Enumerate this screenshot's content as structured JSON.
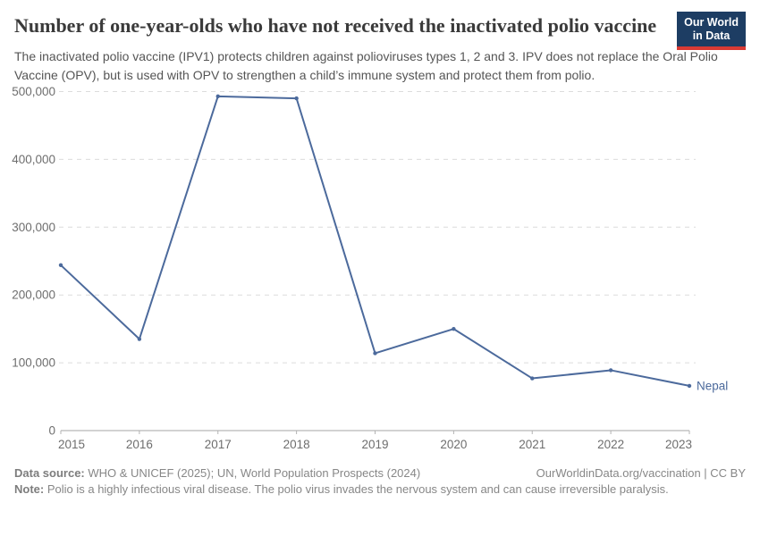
{
  "header": {
    "logo": {
      "line1": "Our World",
      "line2": "in Data",
      "bg_color": "#1d3d63",
      "accent_color": "#d93a34"
    }
  },
  "chart_data": {
    "type": "line",
    "title": "Number of one-year-olds who have not received the inactivated polio vaccine",
    "subtitle": "The inactivated polio vaccine (IPV1) protects children against polioviruses types 1, 2 and 3. IPV does not replace the Oral Polio Vaccine (OPV), but is used with OPV to strengthen a child’s immune system and protect them from polio.",
    "x": [
      2015,
      2016,
      2017,
      2018,
      2019,
      2020,
      2021,
      2022,
      2023
    ],
    "series": [
      {
        "name": "Nepal",
        "color": "#4c6a9c",
        "values": [
          244000,
          135000,
          493000,
          490000,
          114000,
          150000,
          77000,
          89000,
          66000
        ]
      }
    ],
    "ylim": [
      0,
      500000
    ],
    "yticks": [
      0,
      100000,
      200000,
      300000,
      400000,
      500000
    ],
    "ytick_labels": [
      "0",
      "100,000",
      "200,000",
      "300,000",
      "400,000",
      "500,000"
    ],
    "xtick_labels": [
      "2015",
      "2016",
      "2017",
      "2018",
      "2019",
      "2020",
      "2021",
      "2022",
      "2023"
    ],
    "grid": "horizontal-dashed",
    "grid_color": "#dcdcdc",
    "axis_color": "#a5a5a5",
    "tick_label_color": "#6e6e6e",
    "legend": "end-of-line-label"
  },
  "footer": {
    "datasource_label": "Data source:",
    "datasource_text": " WHO & UNICEF (2025); UN, World Population Prospects (2024)",
    "credit": "OurWorldinData.org/vaccination | CC BY",
    "note_label": "Note:",
    "note_text": " Polio is a highly infectious viral disease. The polio virus invades the nervous system and can cause irreversible paralysis."
  }
}
